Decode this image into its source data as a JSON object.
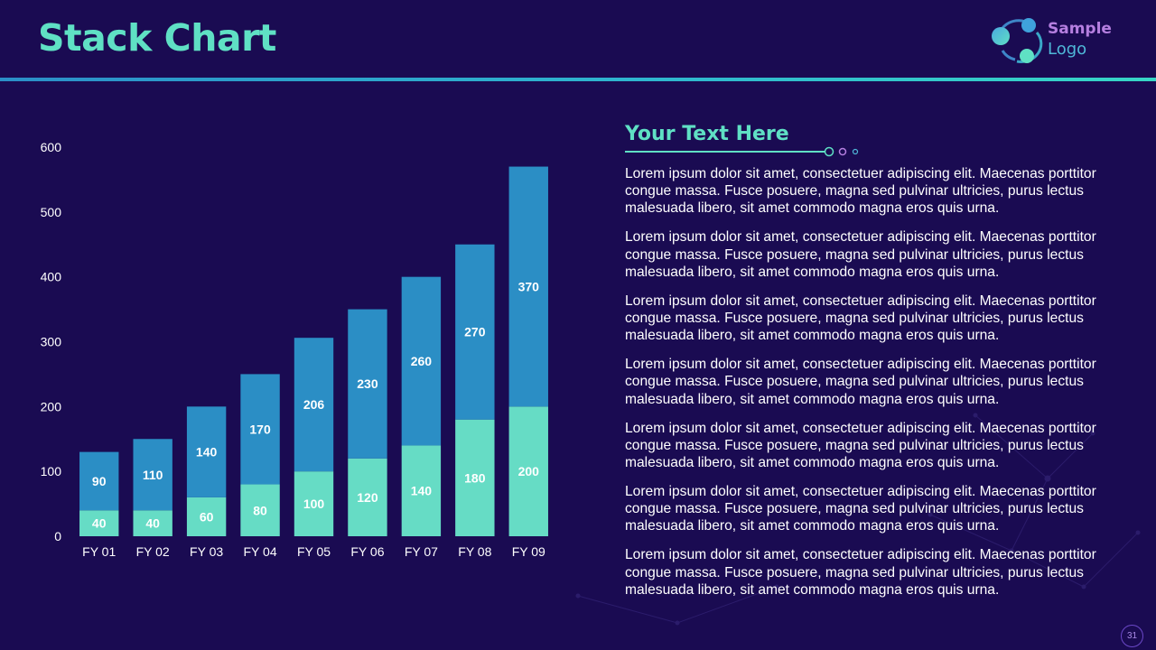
{
  "slide": {
    "title": "Stack Chart",
    "page_number": "31"
  },
  "logo": {
    "line1": "Sample",
    "line2": "Logo"
  },
  "text_panel": {
    "heading": "Your Text Here",
    "paragraphs": [
      "Lorem ipsum dolor sit amet, consectetuer adipiscing elit. Maecenas porttitor congue massa. Fusce posuere, magna sed pulvinar ultricies, purus lectus malesuada libero, sit amet commodo magna eros quis urna.",
      "Lorem ipsum dolor sit amet, consectetuer adipiscing elit. Maecenas porttitor congue massa. Fusce posuere, magna sed pulvinar ultricies, purus lectus malesuada libero, sit amet commodo magna eros quis urna.",
      "Lorem ipsum dolor sit amet, consectetuer adipiscing elit. Maecenas porttitor congue massa. Fusce posuere, magna sed pulvinar ultricies, purus lectus malesuada libero, sit amet commodo magna eros quis urna.",
      "Lorem ipsum dolor sit amet, consectetuer adipiscing elit. Maecenas porttitor congue massa. Fusce posuere, magna sed pulvinar ultricies, purus lectus malesuada libero, sit amet commodo magna eros quis urna.",
      "Lorem ipsum dolor sit amet, consectetuer adipiscing elit. Maecenas porttitor congue massa. Fusce posuere, magna sed pulvinar ultricies, purus lectus malesuada libero, sit amet commodo magna eros quis urna.",
      "Lorem ipsum dolor sit amet, consectetuer adipiscing elit. Maecenas porttitor congue massa. Fusce posuere, magna sed pulvinar ultricies, purus lectus malesuada libero, sit amet commodo magna eros quis urna.",
      "Lorem ipsum dolor sit amet, consectetuer adipiscing elit. Maecenas porttitor congue massa. Fusce posuere, magna sed pulvinar ultricies, purus lectus malesuada libero, sit amet commodo magna eros quis urna."
    ]
  },
  "colors": {
    "background": "#1a0b52",
    "accent": "#5fe0c4",
    "series_bottom": "#66dcc5",
    "series_top": "#2b8ec5"
  },
  "chart_data": {
    "type": "bar",
    "stacked": true,
    "categories": [
      "FY 01",
      "FY 02",
      "FY 03",
      "FY 04",
      "FY 05",
      "FY 06",
      "FY 07",
      "FY 08",
      "FY 09"
    ],
    "series": [
      {
        "values": [
          40,
          40,
          60,
          80,
          100,
          120,
          140,
          180,
          200
        ],
        "color": "#66dcc5"
      },
      {
        "values": [
          90,
          110,
          140,
          170,
          206,
          230,
          260,
          270,
          370
        ],
        "color": "#2b8ec5"
      }
    ],
    "y_ticks": [
      "0",
      "100",
      "200",
      "300",
      "400",
      "500",
      "600"
    ],
    "ylim": [
      0,
      600
    ],
    "data_labels": true,
    "grid": false,
    "legend": "none",
    "title": "",
    "xlabel": "",
    "ylabel": ""
  }
}
